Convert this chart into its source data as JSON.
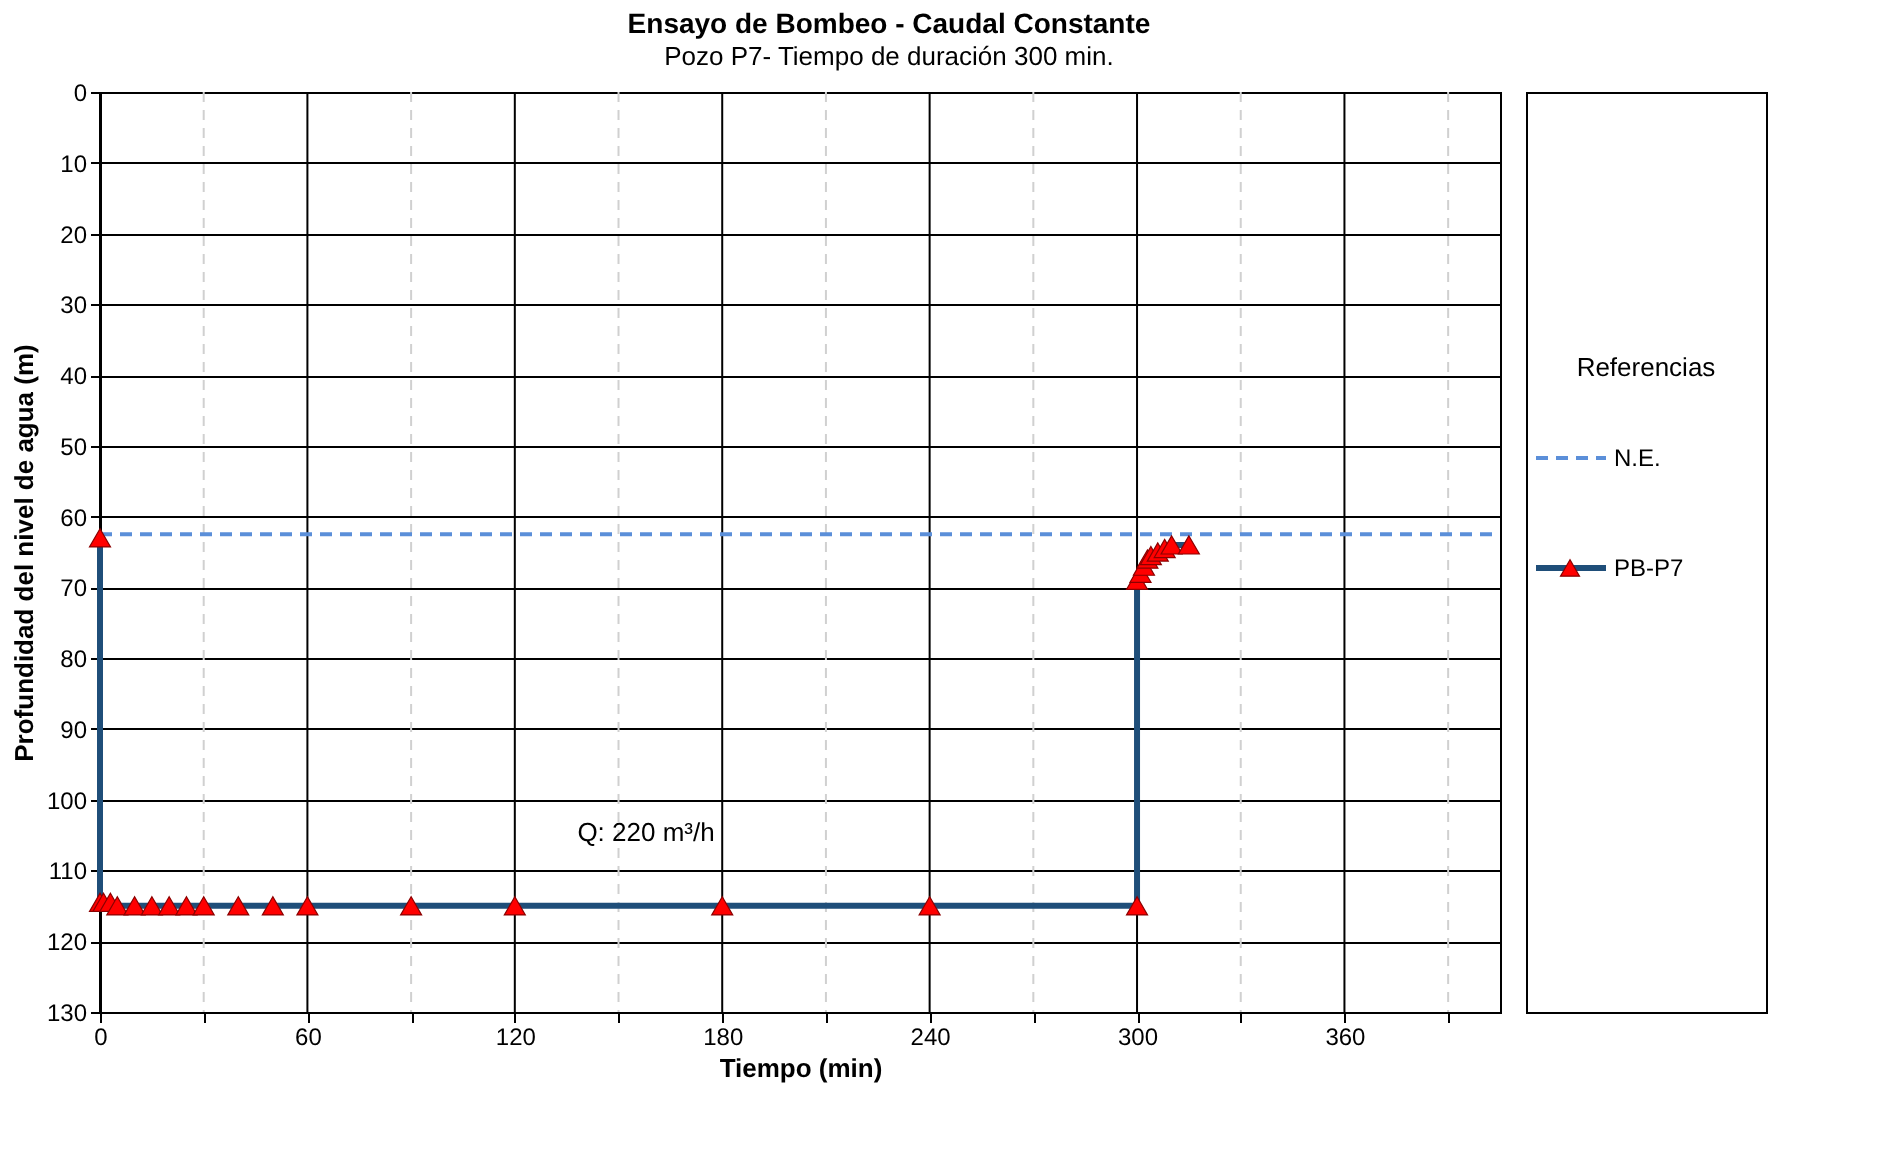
{
  "chart_data": {
    "type": "line",
    "title": "Ensayo de Bombeo - Caudal Constante",
    "subtitle": "Pozo  P7- Tiempo de duración 300 min.",
    "xlabel": "Tiempo (min)",
    "ylabel": "Profundidad del nivel de agua (m)",
    "legend_title": "Referencias",
    "legend": "right",
    "grid": true,
    "xlim": [
      0,
      405
    ],
    "xticks": [
      0,
      {
        "value": 30,
        "label": null
      },
      60,
      {
        "value": 90,
        "label": null
      },
      120,
      {
        "value": 150,
        "label": null
      },
      180,
      {
        "value": 210,
        "label": null
      },
      240,
      {
        "value": 270,
        "label": null
      },
      300,
      {
        "value": 330,
        "label": null
      },
      360,
      {
        "value": 390,
        "label": null
      }
    ],
    "ylim": [
      130,
      0
    ],
    "yticks": [
      0,
      10,
      20,
      30,
      40,
      50,
      60,
      70,
      80,
      90,
      100,
      110,
      120,
      130
    ],
    "annotations": [
      "Q: 220 m³/h"
    ],
    "series": [
      {
        "name": "N.E.",
        "color": "#5b8fd9",
        "line_style": "dashed",
        "marker": "none",
        "x": [
          0,
          405
        ],
        "values": [
          62.5,
          62.5
        ]
      },
      {
        "name": "PB-P7",
        "color": "#1f4e79",
        "line_style": "solid",
        "marker": "triangle",
        "x": [
          0,
          0,
          1,
          3,
          5,
          10,
          15,
          20,
          25,
          30,
          40,
          50,
          60,
          90,
          120,
          180,
          240,
          300,
          300,
          301,
          302,
          303,
          304,
          306,
          308,
          310,
          315
        ],
        "values": [
          63,
          114.5,
          114.5,
          114.5,
          115,
          115,
          115,
          115,
          115,
          115,
          115,
          115,
          115,
          115,
          115,
          115,
          115,
          115,
          69,
          68,
          67,
          66,
          65.5,
          65,
          64.5,
          64,
          64
        ],
        "colors": [
          "#ff0000",
          "#ff0000",
          "#ff0000",
          "#ff0000",
          "#ff0000",
          "#ff0000",
          "#ff0000",
          "#ff0000",
          "#ff0000",
          "#ff0000",
          "#ff0000",
          "#ff0000",
          "#ff0000",
          "#ff0000",
          "#ff0000",
          "#ff0000",
          "#ff0000",
          "#ff0000",
          "#ff0000",
          "#ff0000",
          "#ff0000",
          "#ff0000",
          "#ff0000",
          "#ff0000",
          "#ff0000",
          "#ff0000",
          "#ff0000"
        ]
      }
    ]
  }
}
